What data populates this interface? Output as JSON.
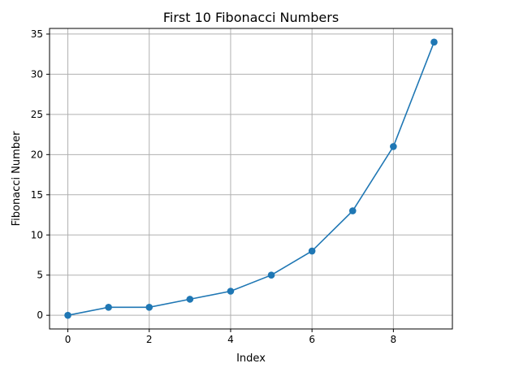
{
  "chart_data": {
    "type": "line",
    "title": "First 10 Fibonacci Numbers",
    "xlabel": "Index",
    "ylabel": "Fibonacci Number",
    "x": [
      0,
      1,
      2,
      3,
      4,
      5,
      6,
      7,
      8,
      9
    ],
    "series": [
      {
        "values": [
          0,
          1,
          1,
          2,
          3,
          5,
          8,
          13,
          21,
          34
        ],
        "color": "#1f77b4",
        "marker": "circle"
      }
    ],
    "xlim": [
      -0.45,
      9.45
    ],
    "ylim": [
      -1.7,
      35.7
    ],
    "xticks": [
      0,
      2,
      4,
      6,
      8
    ],
    "yticks": [
      0,
      5,
      10,
      15,
      20,
      25,
      30,
      35
    ],
    "grid": true,
    "legend": false
  }
}
